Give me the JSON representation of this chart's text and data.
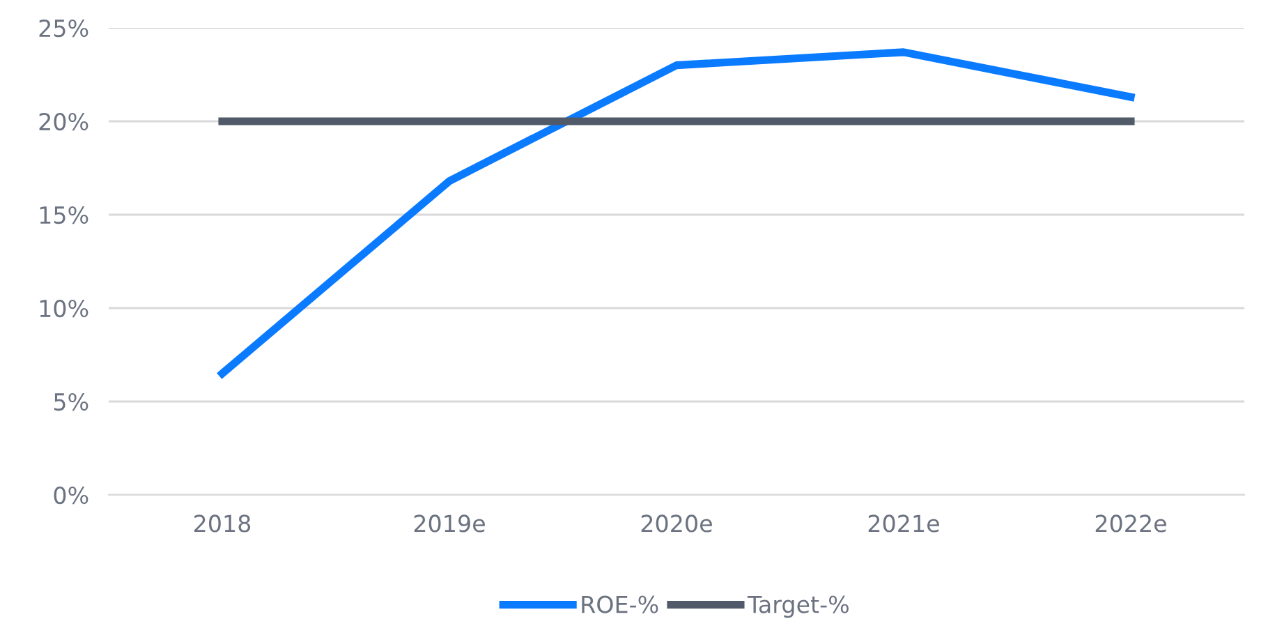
{
  "chart_data": {
    "type": "line",
    "categories": [
      "2018",
      "2019e",
      "2020e",
      "2021e",
      "2022e"
    ],
    "series": [
      {
        "name": "ROE-%",
        "color": "#0a7bff",
        "values": [
          6.5,
          16.8,
          23.0,
          23.7,
          21.3
        ]
      },
      {
        "name": "Target-%",
        "color": "#515a68",
        "values": [
          20,
          20,
          20,
          20,
          20
        ]
      }
    ],
    "ylim": [
      0,
      25
    ],
    "yticks": [
      {
        "value": 0,
        "label": "0%"
      },
      {
        "value": 5,
        "label": "5%"
      },
      {
        "value": 10,
        "label": "10%"
      },
      {
        "value": 15,
        "label": "15%"
      },
      {
        "value": 20,
        "label": "20%"
      },
      {
        "value": 25,
        "label": "25%"
      }
    ],
    "grid": "y",
    "legend": "bottom",
    "marker": "none",
    "line_style": "solid"
  }
}
